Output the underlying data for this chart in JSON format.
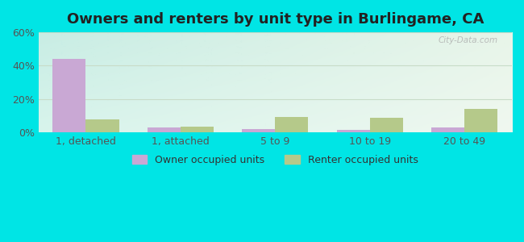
{
  "title": "Owners and renters by unit type in Burlingame, CA",
  "categories": [
    "1, detached",
    "1, attached",
    "5 to 9",
    "10 to 19",
    "20 to 49"
  ],
  "owner_values": [
    44,
    3,
    2,
    1.5,
    3
  ],
  "renter_values": [
    8,
    3.5,
    9.5,
    9,
    14
  ],
  "owner_color": "#c9a8d4",
  "renter_color": "#b5c98a",
  "ylim": [
    0,
    60
  ],
  "yticks": [
    0,
    20,
    40,
    60
  ],
  "ytick_labels": [
    "0%",
    "20%",
    "40%",
    "60%"
  ],
  "background_outer": "#00e5e5",
  "background_plot_topleft": "#c8ede4",
  "background_plot_topright": "#e8f5e9",
  "background_plot_bottomleft": "#d8f4ec",
  "background_plot_bottomright": "#f0f8f0",
  "grid_color": "#c8dcc8",
  "watermark": "City-Data.com",
  "legend_owner": "Owner occupied units",
  "legend_renter": "Renter occupied units",
  "bar_width": 0.35,
  "title_fontsize": 13,
  "tick_fontsize": 9,
  "legend_fontsize": 9
}
